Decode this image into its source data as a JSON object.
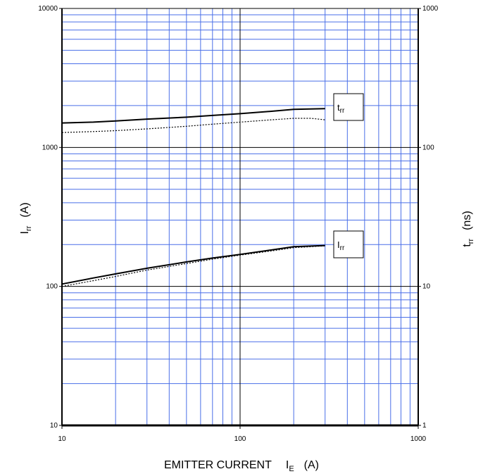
{
  "chart_data": {
    "type": "line",
    "x_scale": "log",
    "y_scale": "log",
    "y2_scale": "log",
    "grid": true,
    "colors": {
      "grid_minor": "#4a6fe8",
      "grid_major": "#000000",
      "series": "#000000"
    },
    "xlim": [
      10,
      1000
    ],
    "ylim": [
      10,
      10000
    ],
    "y2lim": [
      1,
      1000
    ],
    "x_ticks": [
      "10",
      "100",
      "1000"
    ],
    "y_ticks": [
      "10",
      "100",
      "1000",
      "10000"
    ],
    "y2_ticks": [
      "1",
      "10",
      "100",
      "1000"
    ],
    "xlabel": {
      "main": "EMITTER CURRENT",
      "symbol": "I",
      "subscript": "E",
      "unit": "(A)"
    },
    "ylabel": {
      "symbol": "I",
      "subscript": "rr",
      "unit": "(A)"
    },
    "y2label": {
      "symbol": "t",
      "subscript": "rr",
      "unit": "(ns)"
    },
    "series": [
      {
        "name": "t_rr",
        "axis": "y2",
        "style": "solid",
        "x": [
          10,
          15,
          20,
          30,
          50,
          70,
          100,
          150,
          200,
          300
        ],
        "y": [
          150,
          152,
          155,
          160,
          165,
          170,
          175,
          182,
          188,
          190
        ]
      },
      {
        "name": "t_rr",
        "axis": "y2",
        "style": "dotted",
        "x": [
          10,
          15,
          20,
          30,
          50,
          70,
          100,
          150,
          200,
          250,
          300
        ],
        "y": [
          128,
          130,
          132,
          136,
          142,
          147,
          152,
          158,
          162,
          162,
          158
        ]
      },
      {
        "name": "I_rr",
        "axis": "y",
        "style": "solid",
        "x": [
          10,
          15,
          20,
          30,
          50,
          70,
          100,
          150,
          200,
          300
        ],
        "y": [
          104,
          115,
          123,
          135,
          150,
          160,
          170,
          183,
          193,
          197
        ]
      },
      {
        "name": "I_rr",
        "axis": "y",
        "style": "dotted",
        "x": [
          10,
          15,
          20,
          30,
          50,
          70,
          100,
          150,
          200,
          300
        ],
        "y": [
          100,
          110,
          118,
          131,
          146,
          157,
          168,
          180,
          190,
          196
        ]
      }
    ],
    "legend": [
      {
        "symbol": "t",
        "subscript": "rr",
        "series": "t_rr"
      },
      {
        "symbol": "I",
        "subscript": "rr",
        "series": "I_rr"
      }
    ]
  }
}
